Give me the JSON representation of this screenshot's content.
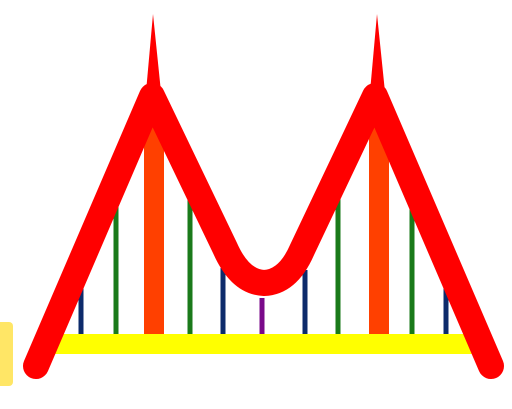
{
  "colors": {
    "background": "#ffffff",
    "cable": "#ff0000",
    "tower": "#ff4000",
    "deck": "#ffff00",
    "side_tab": "#ffe666",
    "hanger_navy": "#0d2b6b",
    "hanger_green": "#1a7a1a",
    "hanger_purple": "#7a0a8a"
  },
  "icons": {
    "main": "suspension-bridge-icon",
    "tab": "panel-edge-tab"
  }
}
